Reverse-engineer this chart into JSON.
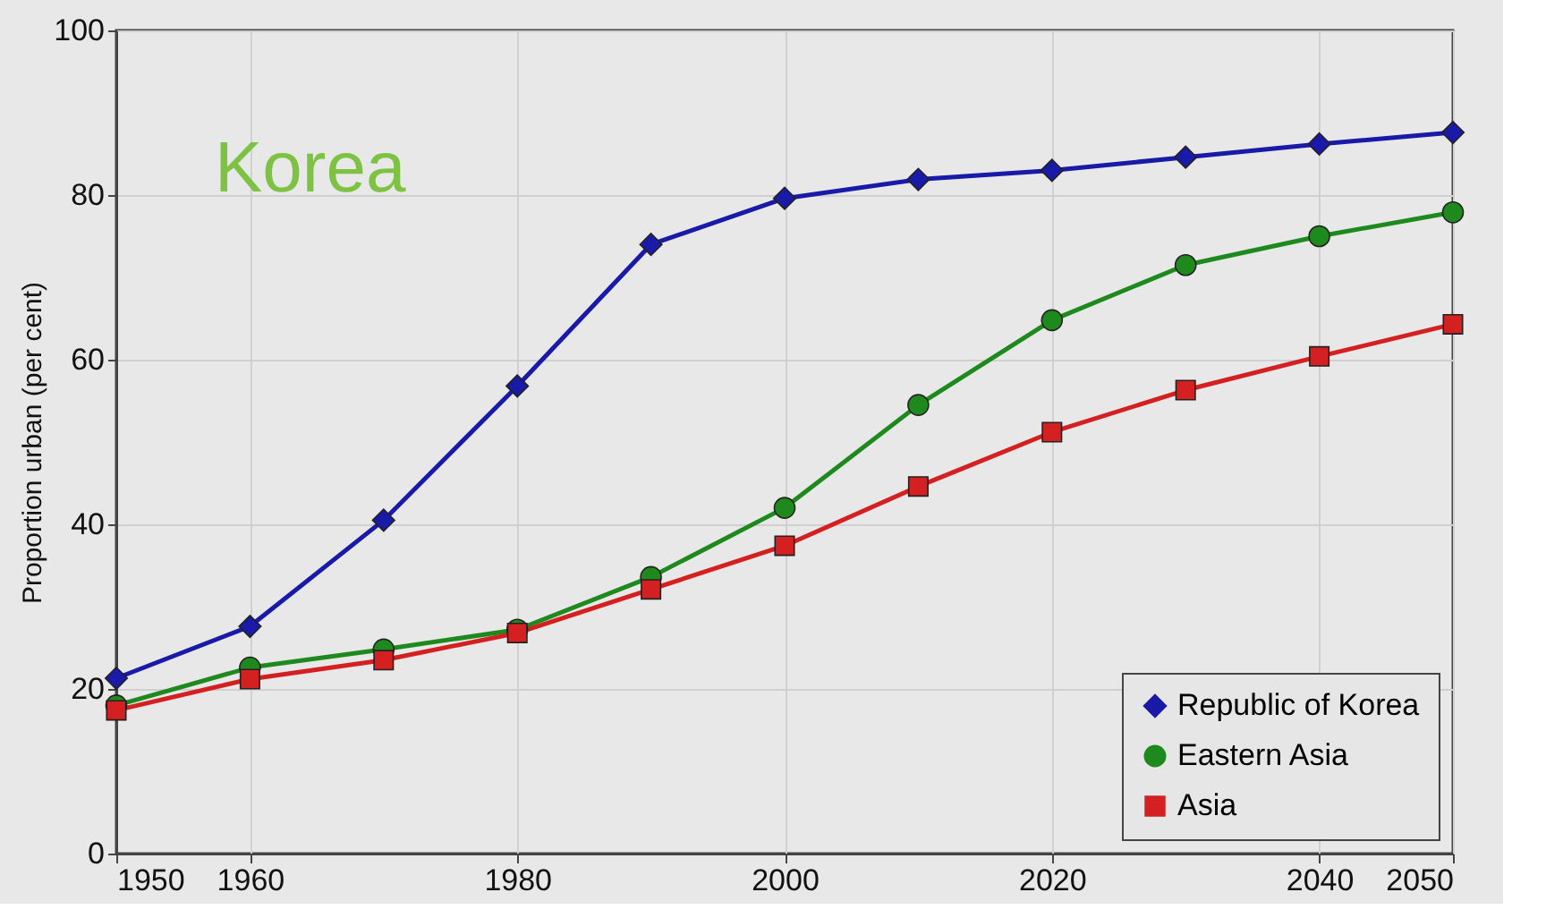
{
  "chart_data": {
    "type": "line",
    "ylabel": "Proportion urban (per cent)",
    "annotations": [
      "Korea"
    ],
    "x": [
      1950,
      1960,
      1970,
      1980,
      1990,
      2000,
      2010,
      2020,
      2030,
      2040,
      2050
    ],
    "series": [
      {
        "name": "Republic of Korea",
        "color": "#1a1aa8",
        "marker": "diamond",
        "values": [
          21.3,
          27.6,
          40.5,
          56.8,
          74,
          79.6,
          81.9,
          83,
          84.6,
          86.2,
          87.6
        ]
      },
      {
        "name": "Eastern Asia",
        "color": "#1e8a1e",
        "marker": "circle",
        "values": [
          18,
          22.6,
          24.8,
          27.2,
          33.6,
          42,
          54.5,
          64.8,
          71.5,
          75,
          77.9
        ]
      },
      {
        "name": "Asia",
        "color": "#d42020",
        "marker": "square",
        "values": [
          17.4,
          21.2,
          23.5,
          26.8,
          32.1,
          37.4,
          44.6,
          51.2,
          56.3,
          60.4,
          64.3
        ]
      }
    ],
    "xlim": [
      1950,
      2050
    ],
    "xticks": [
      1950,
      1960,
      1980,
      2000,
      2020,
      2040,
      2050
    ],
    "ylim": [
      0,
      100
    ],
    "yticks": [
      0,
      20,
      40,
      60,
      80,
      100
    ],
    "grid": true,
    "legend": "bottom right",
    "line_style": "solid"
  }
}
